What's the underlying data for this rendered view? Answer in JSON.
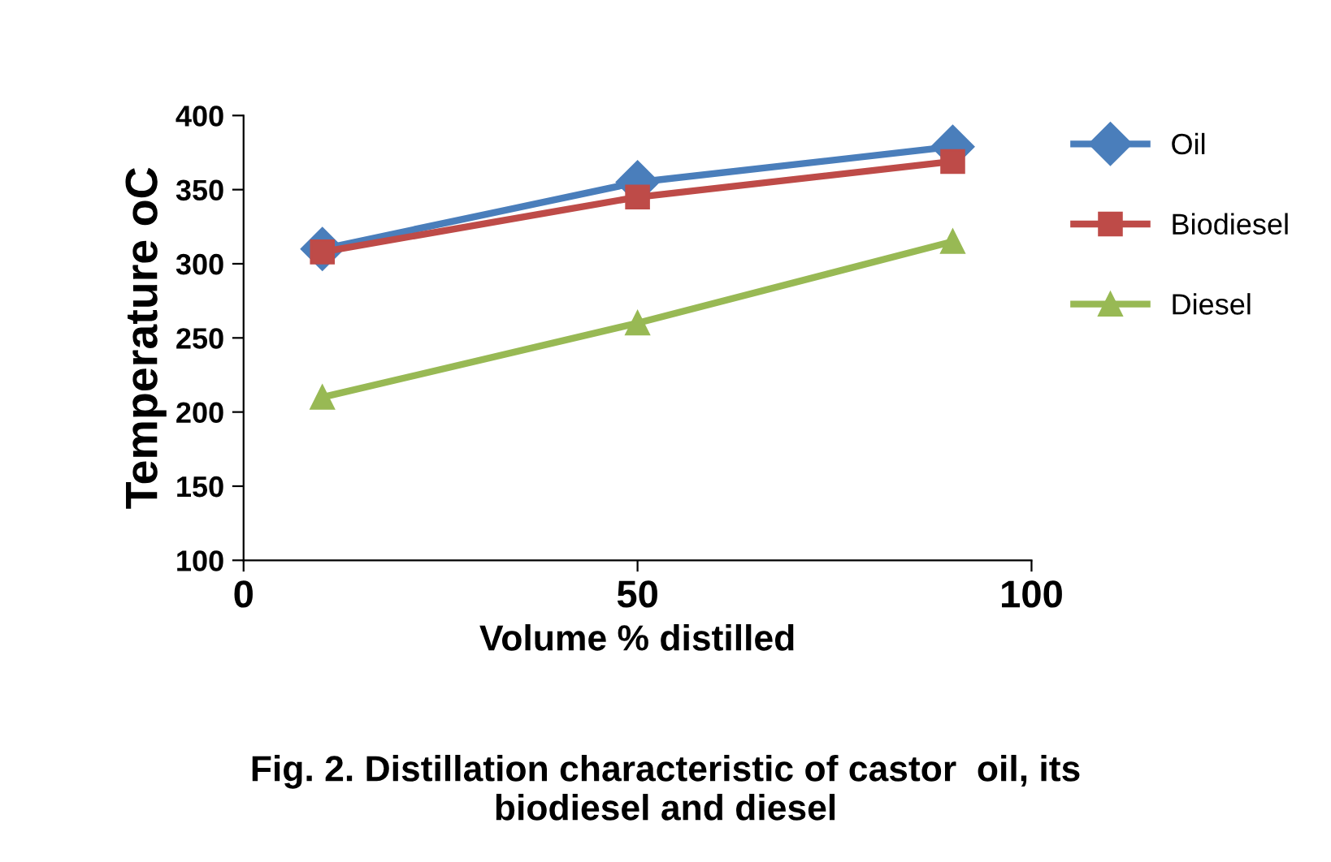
{
  "chart_data": {
    "type": "line",
    "title": "Fig. 2. Distillation characteristic of castor  oil, its\nbiodiesel and diesel",
    "xlabel": "Volume % distilled",
    "ylabel": "Temperature oC",
    "x": [
      10,
      50,
      90
    ],
    "series": [
      {
        "name": "Oil",
        "color": "#4a7ebb",
        "marker": "diamond",
        "values": [
          310,
          355,
          379
        ]
      },
      {
        "name": "Biodiesel",
        "color": "#be4b48",
        "marker": "square",
        "values": [
          308,
          345,
          369
        ]
      },
      {
        "name": "Diesel",
        "color": "#98b954",
        "marker": "triangle",
        "values": [
          210,
          260,
          315
        ]
      }
    ],
    "xlim": [
      0,
      100
    ],
    "xticks": [
      0,
      50,
      100
    ],
    "ylim": [
      100,
      400
    ],
    "yticks": [
      100,
      150,
      200,
      250,
      300,
      350,
      400
    ],
    "grid": false,
    "legend": "right",
    "line_style": "solid"
  }
}
